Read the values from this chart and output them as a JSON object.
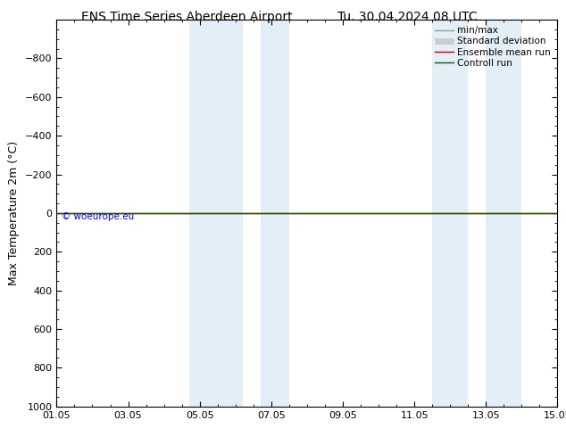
{
  "title": "ENS Time Series Aberdeen Airport",
  "title_right": "Tu. 30.04.2024 08 UTC",
  "ylabel": "Max Temperature 2m (°C)",
  "watermark": "© woeurope.eu",
  "ylim_top": -1000,
  "ylim_bottom": 1000,
  "yticks": [
    -800,
    -600,
    -400,
    -200,
    0,
    200,
    400,
    600,
    800,
    1000
  ],
  "x_start_num": 0,
  "x_end_num": 14,
  "xtick_labels": [
    "01.05",
    "03.05",
    "05.05",
    "07.05",
    "09.05",
    "11.05",
    "13.05",
    "15.05"
  ],
  "xtick_positions": [
    0,
    2,
    4,
    6,
    8,
    10,
    12,
    14
  ],
  "shaded_bands": [
    {
      "x_start": 3.7,
      "x_end": 5.2
    },
    {
      "x_start": 5.7,
      "x_end": 6.5
    },
    {
      "x_start": 10.5,
      "x_end": 11.5
    },
    {
      "x_start": 12.0,
      "x_end": 13.0
    }
  ],
  "green_line_y": 0,
  "green_line_color": "#006000",
  "red_line_color": "#cc0000",
  "legend_items": [
    {
      "label": "min/max",
      "color": "#999999",
      "lw": 1.0
    },
    {
      "label": "Standard deviation",
      "color": "#cccccc",
      "lw": 5
    },
    {
      "label": "Ensemble mean run",
      "color": "#cc0000",
      "lw": 1.0
    },
    {
      "label": "Controll run",
      "color": "#006000",
      "lw": 1.0
    }
  ],
  "band_color": "#cce0f0",
  "band_alpha": 0.55,
  "background_color": "#ffffff",
  "title_fontsize": 10,
  "axis_label_fontsize": 9,
  "tick_fontsize": 8,
  "watermark_color": "#0000cc",
  "watermark_fontsize": 7.5
}
